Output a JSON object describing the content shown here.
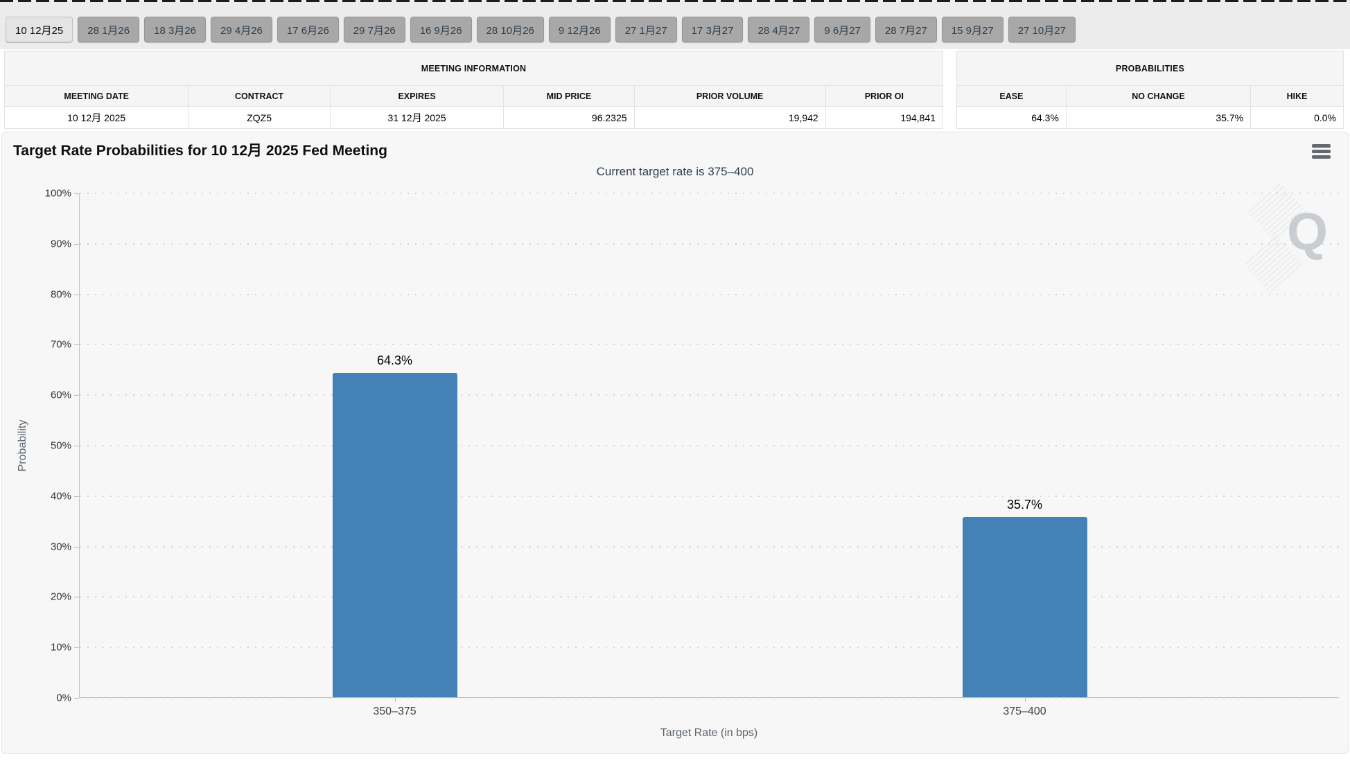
{
  "tabs": [
    {
      "label": "10 12月25",
      "selected": true
    },
    {
      "label": "28 1月26",
      "selected": false
    },
    {
      "label": "18 3月26",
      "selected": false
    },
    {
      "label": "29 4月26",
      "selected": false
    },
    {
      "label": "17 6月26",
      "selected": false
    },
    {
      "label": "29 7月26",
      "selected": false
    },
    {
      "label": "16 9月26",
      "selected": false
    },
    {
      "label": "28 10月26",
      "selected": false
    },
    {
      "label": "9 12月26",
      "selected": false
    },
    {
      "label": "27 1月27",
      "selected": false
    },
    {
      "label": "17 3月27",
      "selected": false
    },
    {
      "label": "28 4月27",
      "selected": false
    },
    {
      "label": "9 6月27",
      "selected": false
    },
    {
      "label": "28 7月27",
      "selected": false
    },
    {
      "label": "15 9月27",
      "selected": false
    },
    {
      "label": "27 10月27",
      "selected": false
    }
  ],
  "meeting_info": {
    "caption": "MEETING INFORMATION",
    "columns": [
      {
        "label": "MEETING DATE",
        "value": "10 12月 2025",
        "align": "center",
        "width": "19.6%"
      },
      {
        "label": "CONTRACT",
        "value": "ZQZ5",
        "align": "center",
        "width": "15.1%"
      },
      {
        "label": "EXPIRES",
        "value": "31 12月 2025",
        "align": "center",
        "width": "18.5%"
      },
      {
        "label": "MID PRICE",
        "value": "96.2325",
        "align": "right",
        "width": "13.9%"
      },
      {
        "label": "PRIOR VOLUME",
        "value": "19,942",
        "align": "right",
        "width": "20.4%"
      },
      {
        "label": "PRIOR OI",
        "value": "194,841",
        "align": "right",
        "width": "12.5%"
      }
    ]
  },
  "probabilities": {
    "caption": "PROBABILITIES",
    "columns": [
      {
        "label": "EASE",
        "value": "64.3%",
        "align": "right",
        "width": "28.3%"
      },
      {
        "label": "NO CHANGE",
        "value": "35.7%",
        "align": "right",
        "width": "47.7%"
      },
      {
        "label": "HIKE",
        "value": "0.0%",
        "align": "right",
        "width": "24.0%"
      }
    ]
  },
  "chart": {
    "title": "Target Rate Probabilities for 10 12月 2025 Fed Meeting",
    "subtitle": "Current target rate is 375–400",
    "menu_icon": "hamburger-icon",
    "watermark_letter": "Q"
  },
  "chart_data": {
    "type": "bar",
    "title": "Target Rate Probabilities for 10 12月 2025 Fed Meeting",
    "subtitle": "Current target rate is 375–400",
    "categories": [
      "350–375",
      "375–400"
    ],
    "values": [
      64.3,
      35.7
    ],
    "value_labels": [
      "64.3%",
      "35.7%"
    ],
    "xlabel": "Target Rate (in bps)",
    "ylabel": "Probability",
    "ylim": [
      0,
      100
    ],
    "ytick_step": 10,
    "ytick_suffix": "%",
    "grid": "dotted-horizontal",
    "legend": "none",
    "bar_color": "#4381b7"
  },
  "colors": {
    "bar": "#4381b7",
    "panel_bg": "#f7f7f7",
    "tab_bg": "#a8a8a8",
    "tab_selected_bg": "#e4e4e4",
    "subtitle_text": "#303e4c"
  }
}
